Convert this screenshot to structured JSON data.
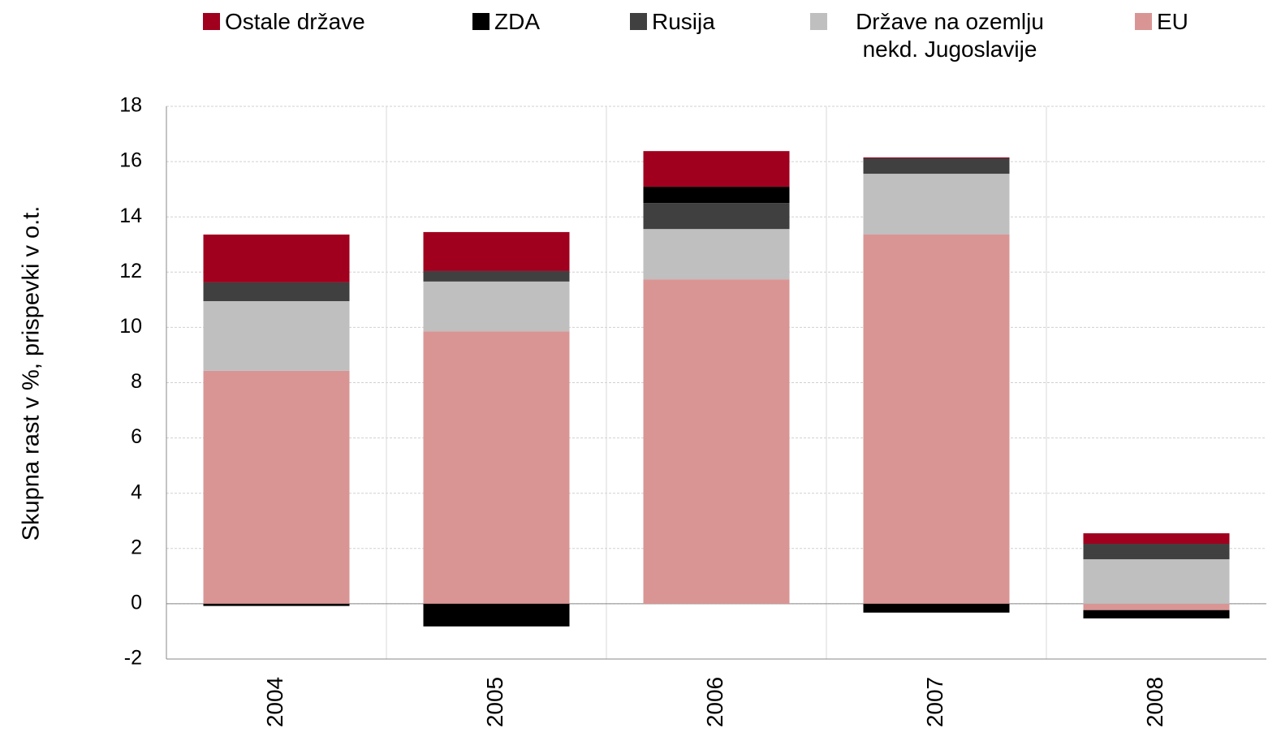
{
  "chart_data": {
    "type": "bar",
    "stacked": true,
    "y_label": "Skupna rast v %, prispevki v o.t.",
    "categories": [
      "2004",
      "2005",
      "2006",
      "2007",
      "2008"
    ],
    "series": [
      {
        "name": "Ostale države",
        "color": "#a0001e",
        "values": [
          1.73,
          1.41,
          1.29,
          0.03,
          0.38
        ]
      },
      {
        "name": "ZDA",
        "color": "#000000",
        "values": [
          -0.08,
          -0.82,
          0.59,
          -0.32,
          -0.3
        ]
      },
      {
        "name": "Rusija",
        "color": "#404040",
        "values": [
          0.68,
          0.38,
          0.94,
          0.56,
          0.56
        ]
      },
      {
        "name": "Države na ozemlju nekd. Jugoslavije",
        "color": "#bfbfbf",
        "values": [
          2.52,
          1.8,
          1.82,
          2.2,
          1.61
        ]
      },
      {
        "name": "EU",
        "color": "#d99594",
        "values": [
          8.43,
          9.86,
          11.74,
          13.36,
          -0.23
        ]
      }
    ],
    "ylim": [
      -2,
      18
    ],
    "yticks": [
      -2,
      0,
      2,
      4,
      6,
      8,
      10,
      12,
      14,
      16,
      18
    ],
    "grid": true
  }
}
